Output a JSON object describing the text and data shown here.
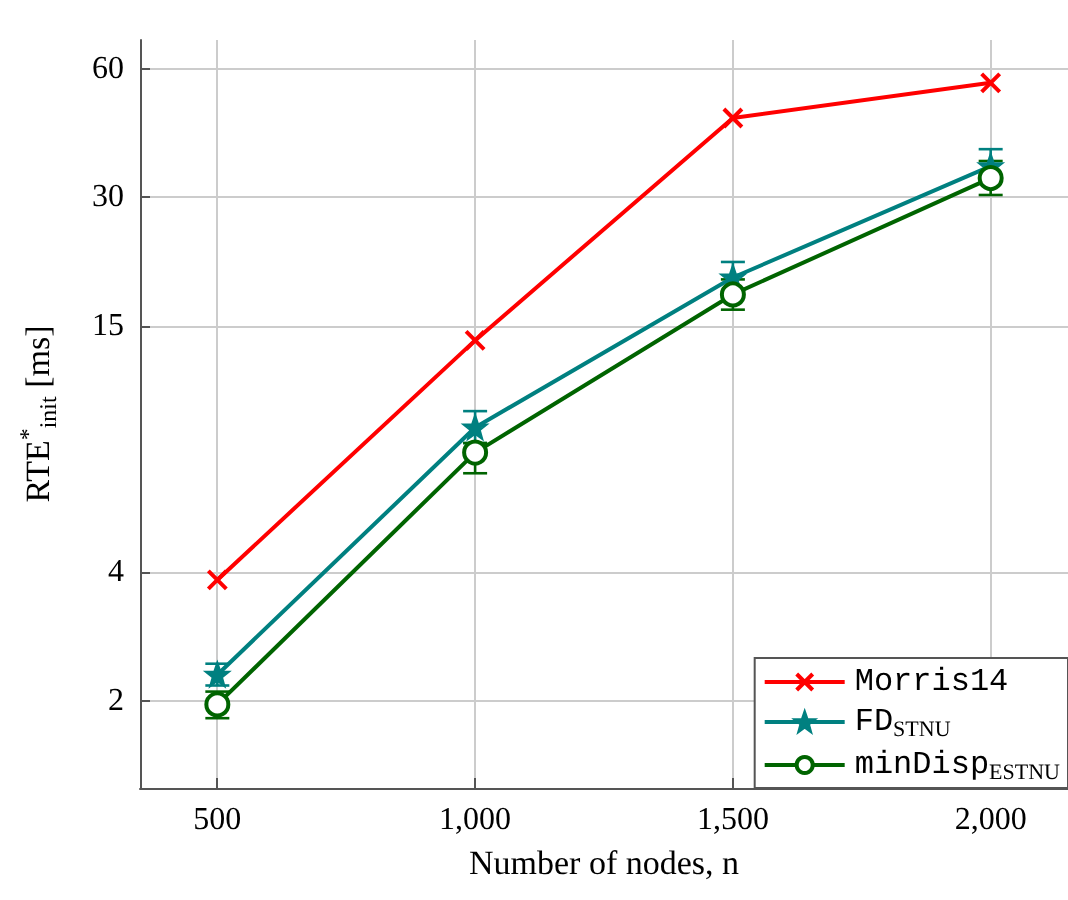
{
  "chart_data": {
    "type": "line",
    "xlabel": "Number of nodes, n",
    "ylabel": "RTE$^{*}$$_{init}$ [ms]",
    "x": [
      500,
      1000,
      1500,
      2000
    ],
    "xlim": [
      350,
      2150
    ],
    "xticks": [
      500,
      {
        "value": 1000,
        "label": "1,000"
      },
      {
        "value": 1500,
        "label": "1,500"
      },
      {
        "value": 2000,
        "label": "2,000"
      }
    ],
    "ylim": [
      1.25,
      70
    ],
    "yticks": [
      2,
      4,
      15,
      30,
      60
    ],
    "log": true,
    "grid": true,
    "legend": "bottom right",
    "line_style": "solid",
    "series": [
      {
        "name": "Morris14",
        "color": "#ff0000",
        "marker": "cross",
        "values": [
          3.83,
          13.9,
          46,
          55.6
        ]
      },
      {
        "name": "FD$_{STNU}$",
        "color": "#008080",
        "marker": "star",
        "values": [
          2.3,
          8.7,
          19.5,
          35.5
        ],
        "errors": [
          [
            2.17,
            2.44
          ],
          [
            8.0,
            9.5
          ],
          [
            18.0,
            21.2
          ],
          [
            33,
            38.9
          ]
        ]
      },
      {
        "name": "minDisp$_{ESTNU}$",
        "color": "#006400",
        "marker": "circle",
        "values": [
          1.96,
          7.6,
          17.8,
          33.3
        ],
        "errors": [
          [
            1.82,
            2.1
          ],
          [
            6.8,
            8.0
          ],
          [
            16.4,
            19.3
          ],
          [
            30.4,
            36.5
          ]
        ]
      }
    ]
  }
}
